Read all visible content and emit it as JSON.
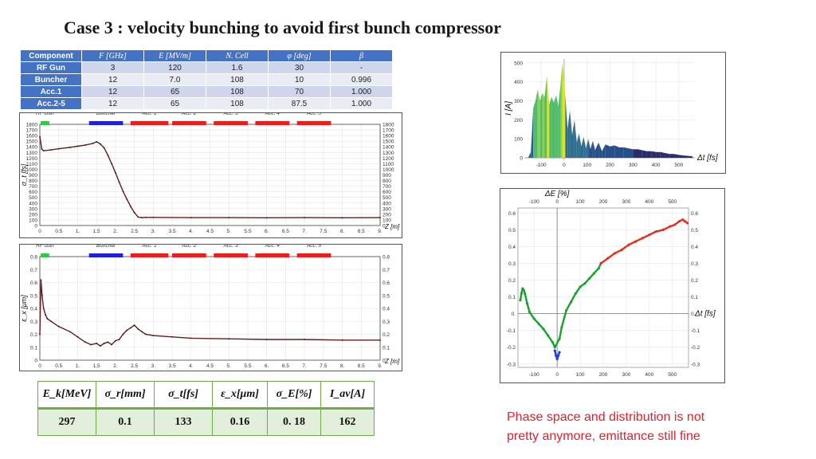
{
  "title": "Case 3 : velocity bunching to avoid first bunch compressor",
  "params_table": {
    "headers": [
      "Component",
      "F [GHz]",
      "E [MV/m]",
      "N. Cell",
      "φ [deg]",
      "β"
    ],
    "rows": [
      [
        "RF Gun",
        "3",
        "120",
        "1.6",
        "30",
        "-"
      ],
      [
        "Buncher",
        "12",
        "7.0",
        "108",
        "10",
        "0.996"
      ],
      [
        "Acc.1",
        "12",
        "65",
        "108",
        "70",
        "1.000"
      ],
      [
        "Acc.2-5",
        "12",
        "65",
        "108",
        "87.5",
        "1.000"
      ]
    ]
  },
  "summary_table": {
    "headers": [
      "E_k[MeV]",
      "σ_r[mm]",
      "σ_t[fs]",
      "ε_x[μm]",
      "σ_E[%]",
      "I_av[A]"
    ],
    "values": [
      "297",
      "0.1",
      "133",
      "0.16",
      "0. 18",
      "162"
    ]
  },
  "note": {
    "line1": "Phase space and distribution is not",
    "line2": "pretty anymore, emittance still fine"
  },
  "colors": {
    "table_header": "#4472c4",
    "summary_border": "#70ad47",
    "note": "#e0212d"
  },
  "chart_data": [
    {
      "type": "line",
      "ylabel": "σ_t [fs]",
      "xlabel": "Z [m]",
      "xlim": [
        0,
        9
      ],
      "ylim": [
        0,
        1800
      ],
      "x_ticks": [
        "0",
        "0.5",
        "1.",
        "1.5",
        "2.",
        "2.5",
        "3.",
        "3.5",
        "4.",
        "4.5",
        "5.",
        "5.5",
        "6.",
        "6.5",
        "7.",
        "7.5",
        "8.",
        "8.5",
        "9."
      ],
      "y_ticks": [
        "0",
        "100",
        "200",
        "300",
        "400",
        "500",
        "600",
        "700",
        "800",
        "900",
        "1000",
        "1100",
        "1200",
        "1300",
        "1400",
        "1500",
        "1600",
        "1700",
        "1800"
      ],
      "components": [
        {
          "label": "RF Gun",
          "x0": 0.02,
          "x1": 0.25,
          "color": "#2ecc40"
        },
        {
          "label": "Buncher",
          "x0": 1.3,
          "x1": 2.2,
          "color": "#1f1fe0"
        },
        {
          "label": "Acc. 1",
          "x0": 2.4,
          "x1": 3.4,
          "color": "#ee1c1c"
        },
        {
          "label": "Acc. 2",
          "x0": 3.5,
          "x1": 4.4,
          "color": "#ee1c1c"
        },
        {
          "label": "Acc. 3",
          "x0": 4.6,
          "x1": 5.5,
          "color": "#ee1c1c"
        },
        {
          "label": "Acc. 4",
          "x0": 5.7,
          "x1": 6.6,
          "color": "#ee1c1c"
        },
        {
          "label": "Acc. 5",
          "x0": 6.8,
          "x1": 7.7,
          "color": "#ee1c1c"
        }
      ],
      "x": [
        0,
        0.05,
        0.1,
        0.3,
        0.5,
        0.8,
        1.0,
        1.2,
        1.4,
        1.5,
        1.6,
        1.7,
        1.8,
        1.9,
        2.0,
        2.1,
        2.2,
        2.3,
        2.4,
        2.5,
        2.6,
        2.7,
        2.8,
        3.0,
        4.0,
        5.0,
        6.0,
        7.0,
        8.0,
        9.0
      ],
      "y": [
        1580,
        1360,
        1330,
        1345,
        1365,
        1390,
        1410,
        1430,
        1460,
        1490,
        1450,
        1380,
        1250,
        1100,
        940,
        770,
        610,
        470,
        340,
        230,
        150,
        140,
        145,
        145,
        140,
        140,
        138,
        140,
        138,
        140
      ]
    },
    {
      "type": "line",
      "ylabel": "ε_x [μm]",
      "xlabel": "Z [m]",
      "xlim": [
        0,
        9
      ],
      "ylim": [
        0,
        0.8
      ],
      "x_ticks": [
        "0",
        "0.5",
        "1.",
        "1.5",
        "2.",
        "2.5",
        "3.",
        "3.5",
        "4.",
        "4.5",
        "5.",
        "5.5",
        "6.",
        "6.5",
        "7.",
        "7.5",
        "8.",
        "8.5",
        "9."
      ],
      "y_ticks": [
        "0",
        "0.1",
        "0.2",
        "0.3",
        "0.4",
        "0.5",
        "0.6",
        "0.7",
        "0.8"
      ],
      "components": [
        {
          "label": "RF Gun",
          "x0": 0.02,
          "x1": 0.25,
          "color": "#2ecc40"
        },
        {
          "label": "Buncher",
          "x0": 1.3,
          "x1": 2.2,
          "color": "#1f1fe0"
        },
        {
          "label": "Acc. 1",
          "x0": 2.4,
          "x1": 3.4,
          "color": "#ee1c1c"
        },
        {
          "label": "Acc. 2",
          "x0": 3.5,
          "x1": 4.4,
          "color": "#ee1c1c"
        },
        {
          "label": "Acc. 3",
          "x0": 4.6,
          "x1": 5.5,
          "color": "#ee1c1c"
        },
        {
          "label": "Acc. 4",
          "x0": 5.7,
          "x1": 6.6,
          "color": "#ee1c1c"
        },
        {
          "label": "Acc. 5",
          "x0": 6.8,
          "x1": 7.7,
          "color": "#ee1c1c"
        }
      ],
      "x": [
        0,
        0.03,
        0.06,
        0.1,
        0.15,
        0.2,
        0.3,
        0.5,
        0.8,
        1.0,
        1.2,
        1.35,
        1.5,
        1.6,
        1.7,
        1.8,
        1.9,
        2.0,
        2.1,
        2.2,
        2.3,
        2.4,
        2.5,
        2.6,
        2.7,
        2.8,
        3.0,
        3.5,
        4.0,
        5.0,
        6.0,
        7.0,
        8.0,
        9.0
      ],
      "y": [
        0.2,
        0.62,
        0.5,
        0.4,
        0.35,
        0.32,
        0.3,
        0.26,
        0.22,
        0.18,
        0.14,
        0.12,
        0.13,
        0.11,
        0.13,
        0.14,
        0.12,
        0.15,
        0.16,
        0.2,
        0.23,
        0.25,
        0.27,
        0.24,
        0.22,
        0.2,
        0.19,
        0.18,
        0.17,
        0.165,
        0.16,
        0.16,
        0.155,
        0.155
      ]
    },
    {
      "type": "area",
      "ylabel": "I [A]",
      "xlabel": "Δt [fs]",
      "xlim": [
        -170,
        570
      ],
      "ylim": [
        0,
        520
      ],
      "x_ticks": [
        "-100",
        "0",
        "100",
        "200",
        "300",
        "400",
        "500"
      ],
      "y_ticks": [
        "0",
        "100",
        "200",
        "300",
        "400",
        "500"
      ],
      "x": [
        -155,
        -145,
        -135,
        -125,
        -115,
        -105,
        -95,
        -85,
        -75,
        -65,
        -55,
        -45,
        -35,
        -25,
        -15,
        -8,
        -3,
        5,
        15,
        25,
        35,
        45,
        55,
        65,
        75,
        85,
        95,
        105,
        115,
        125,
        135,
        150,
        165,
        180,
        200,
        220,
        240,
        260,
        280,
        300,
        320,
        340,
        360,
        380,
        400,
        420,
        440,
        460,
        480,
        500,
        520,
        540,
        560
      ],
      "y": [
        5,
        30,
        260,
        300,
        360,
        300,
        340,
        320,
        430,
        280,
        320,
        290,
        330,
        270,
        400,
        500,
        450,
        330,
        150,
        250,
        120,
        200,
        80,
        130,
        60,
        110,
        50,
        100,
        45,
        90,
        40,
        80,
        35,
        70,
        60,
        65,
        55,
        55,
        50,
        45,
        45,
        40,
        35,
        35,
        30,
        30,
        25,
        20,
        20,
        15,
        12,
        10,
        8
      ]
    },
    {
      "type": "scatter",
      "ylabel": "ΔE [%]",
      "xlabel": "Δt [fs]",
      "xlim": [
        -170,
        570
      ],
      "ylim": [
        -0.32,
        0.63
      ],
      "x_ticks": [
        "-100",
        "0",
        "100",
        "200",
        "300",
        "400",
        "500"
      ],
      "y_ticks": [
        "-0.3",
        "-0.2",
        "-0.1",
        "0.",
        "0.1",
        "0.2",
        "0.3",
        "0.4",
        "0.5",
        "0.6"
      ],
      "series": [
        {
          "color": "#1aa12f",
          "x": [
            -160,
            -155,
            -150,
            -145,
            -140,
            -130,
            -120,
            -100,
            -80,
            -60,
            -40,
            -20,
            -10,
            10,
            20,
            40,
            60,
            80,
            100,
            120,
            140,
            160,
            180,
            190
          ],
          "y": [
            0.08,
            0.12,
            0.15,
            0.14,
            0.12,
            0.06,
            0.01,
            -0.03,
            -0.06,
            -0.09,
            -0.13,
            -0.17,
            -0.2,
            -0.15,
            -0.08,
            0.02,
            0.07,
            0.12,
            0.16,
            0.18,
            0.21,
            0.24,
            0.27,
            0.3
          ]
        },
        {
          "color": "#1f3fd6",
          "x": [
            -10,
            -5,
            0,
            5,
            10
          ],
          "y": [
            -0.22,
            -0.25,
            -0.27,
            -0.25,
            -0.23
          ]
        },
        {
          "color": "#e0301e",
          "x": [
            190,
            220,
            250,
            280,
            310,
            340,
            370,
            400,
            430,
            460,
            490,
            510,
            530,
            545,
            555,
            565
          ],
          "y": [
            0.3,
            0.33,
            0.36,
            0.38,
            0.41,
            0.43,
            0.45,
            0.47,
            0.49,
            0.5,
            0.52,
            0.53,
            0.55,
            0.56,
            0.55,
            0.54
          ]
        }
      ]
    }
  ]
}
